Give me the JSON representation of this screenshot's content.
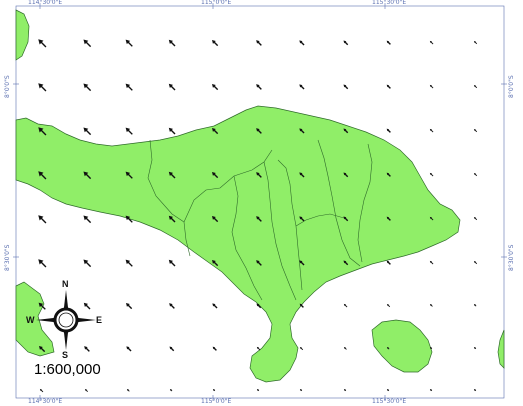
{
  "map": {
    "frame_color": "#5a6fb0",
    "land_color": "#90ee68",
    "boundary_color": "#2f6b2a",
    "arrow_color": "#111111",
    "top_ticks": [
      "114°30'0\"E",
      "115°0'0\"E",
      "115°30'0\"E"
    ],
    "bottom_ticks": [
      "114°30'0\"E",
      "115°0'0\"E",
      "115°30'0\"E"
    ],
    "left_ticks": [
      "8°0'0\"S",
      "8°30'0\"S"
    ],
    "right_ticks": [
      "8°0'0\"S",
      "8°30'0\"S"
    ],
    "wind_field": {
      "description_icon": "arrow-icon",
      "rows": 9,
      "cols": 11
    }
  },
  "compass": {
    "icon": "compass-rose-icon",
    "n": "N",
    "s": "S",
    "e": "E",
    "w": "W"
  },
  "scale": {
    "label": "1:600,000"
  }
}
